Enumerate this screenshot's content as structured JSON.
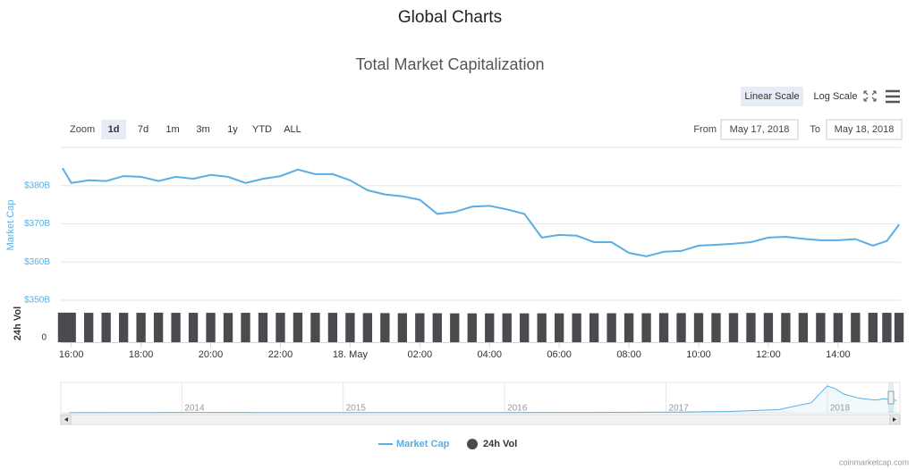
{
  "header": {
    "title": "Global Charts"
  },
  "controls": {
    "scale_buttons": [
      "Linear Scale",
      "Log Scale"
    ],
    "scale_selected": "Linear Scale",
    "zoom_label": "Zoom",
    "zoom": [
      "1d",
      "7d",
      "1m",
      "3m",
      "1y",
      "YTD",
      "ALL"
    ],
    "zoom_selected": "1d",
    "from_label": "From",
    "from": "May 17, 2018",
    "to_label": "To",
    "to": "May 18, 2018"
  },
  "chart_data": {
    "type": "line",
    "title": "Total Market Capitalization",
    "ylabel": "Market Cap",
    "y2label": "24h Vol",
    "log_scale": false,
    "grid": true,
    "legend": "bottom",
    "x": [
      15.75,
      16,
      16.5,
      17,
      17.5,
      18,
      18.5,
      19,
      19.5,
      20,
      20.5,
      21,
      21.5,
      22,
      22.5,
      23,
      23.5,
      24,
      24.5,
      25,
      25.5,
      26,
      26.5,
      27,
      27.5,
      28,
      28.5,
      29,
      29.5,
      30,
      30.5,
      31,
      31.5,
      32,
      32.5,
      33,
      33.5,
      34,
      34.5,
      35,
      35.5,
      36,
      36.5,
      37,
      37.5,
      38,
      38.5,
      39,
      39.4,
      39.75
    ],
    "xlim": [
      15.7,
      39.8
    ],
    "xticks": [
      {
        "value": 16,
        "label": "16:00"
      },
      {
        "value": 18,
        "label": "18:00"
      },
      {
        "value": 20,
        "label": "20:00"
      },
      {
        "value": 22,
        "label": "22:00"
      },
      {
        "value": 24,
        "label": "18. May"
      },
      {
        "value": 26,
        "label": "02:00"
      },
      {
        "value": 28,
        "label": "04:00"
      },
      {
        "value": 30,
        "label": "06:00"
      },
      {
        "value": 32,
        "label": "08:00"
      },
      {
        "value": 34,
        "label": "10:00"
      },
      {
        "value": 36,
        "label": "12:00"
      },
      {
        "value": 38,
        "label": "14:00"
      }
    ],
    "ylim": [
      350,
      390
    ],
    "yticks": [
      {
        "value": 350,
        "label": "$350B"
      },
      {
        "value": 360,
        "label": "$360B"
      },
      {
        "value": 370,
        "label": "$370B"
      },
      {
        "value": 380,
        "label": "$380B"
      }
    ],
    "y2lim": [
      0,
      24
    ],
    "y2ticks": [
      0
    ],
    "series": [
      {
        "name": "Market Cap",
        "color": "#5aaee3",
        "values": [
          384.6,
          380.7,
          381.4,
          381.2,
          382.5,
          382.3,
          381.2,
          382.3,
          381.8,
          382.8,
          382.3,
          380.7,
          381.8,
          382.5,
          384.2,
          383.0,
          383.0,
          381.4,
          378.8,
          377.7,
          377.2,
          376.3,
          372.6,
          373.1,
          374.5,
          374.7,
          373.8,
          372.6,
          366.4,
          367.1,
          366.9,
          365.2,
          365.2,
          362.4,
          361.5,
          362.7,
          362.9,
          364.3,
          364.5,
          364.8,
          365.2,
          366.4,
          366.6,
          366.1,
          365.7,
          365.7,
          366.0,
          364.3,
          365.5,
          369.8
        ]
      },
      {
        "name": "24h Vol",
        "color": "#4a4a4f",
        "axis": "y2",
        "values": [
          20.9,
          20.9,
          20.8,
          20.9,
          20.8,
          20.8,
          20.9,
          20.8,
          20.8,
          20.8,
          20.7,
          20.8,
          20.8,
          20.8,
          20.9,
          20.8,
          20.8,
          20.7,
          20.6,
          20.6,
          20.5,
          20.5,
          20.5,
          20.4,
          20.4,
          20.4,
          20.4,
          20.4,
          20.4,
          20.4,
          20.4,
          20.5,
          20.5,
          20.5,
          20.5,
          20.6,
          20.6,
          20.6,
          20.6,
          20.6,
          20.7,
          20.7,
          20.7,
          20.7,
          20.7,
          20.7,
          20.8,
          20.8,
          20.8,
          20.8
        ]
      }
    ],
    "navigator": {
      "x": [
        2013.3,
        2013.8,
        2014.0,
        2014.5,
        2015.0,
        2015.5,
        2016.0,
        2016.5,
        2017.0,
        2017.4,
        2017.7,
        2017.9,
        2018.0,
        2018.05,
        2018.1,
        2018.2,
        2018.3,
        2018.35,
        2018.43
      ],
      "values": [
        2,
        8,
        11,
        7,
        4,
        4,
        7,
        11,
        18,
        40,
        95,
        300,
        800,
        720,
        560,
        430,
        380,
        420,
        370
      ],
      "xlim": [
        2013.25,
        2018.45
      ],
      "ylim": [
        0,
        850
      ],
      "xticks": [
        2014,
        2015,
        2016,
        2017,
        2018
      ]
    }
  },
  "footer": {
    "credit": "coinmarketcap.com"
  }
}
